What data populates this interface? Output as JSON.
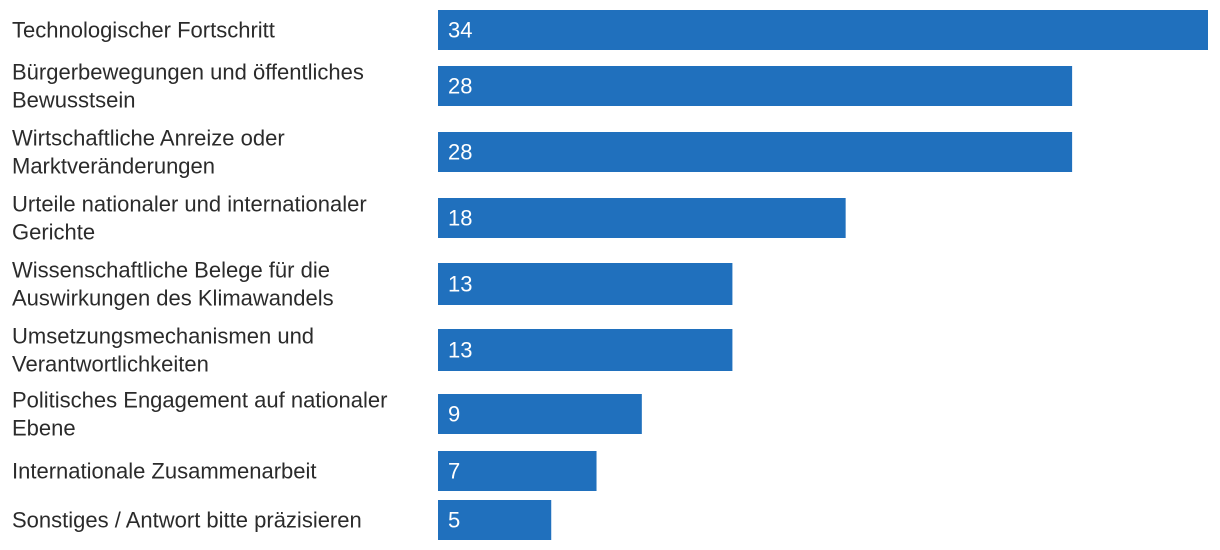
{
  "chart_data": {
    "type": "bar",
    "orientation": "horizontal",
    "categories": [
      [
        "Technologischer Fortschritt"
      ],
      [
        "Bürgerbewegungen und öffentliches",
        "Bewusstsein"
      ],
      [
        "Wirtschaftliche Anreize oder",
        "Marktveränderungen"
      ],
      [
        "Urteile nationaler und internationaler",
        "Gerichte"
      ],
      [
        "Wissenschaftliche Belege für die",
        "Auswirkungen des Klimawandels"
      ],
      [
        "Umsetzungsmechanismen und",
        "Verantwortlichkeiten"
      ],
      [
        "Politisches Engagement auf nationaler",
        "Ebene"
      ],
      [
        "Internationale Zusammenarbeit"
      ],
      [
        "Sonstiges / Antwort bitte präzisieren"
      ]
    ],
    "values": [
      34,
      28,
      28,
      18,
      13,
      13,
      9,
      7,
      5
    ],
    "xlim": [
      0,
      34
    ],
    "bar_color": "#2070bd",
    "grid": false,
    "legend": "none"
  }
}
